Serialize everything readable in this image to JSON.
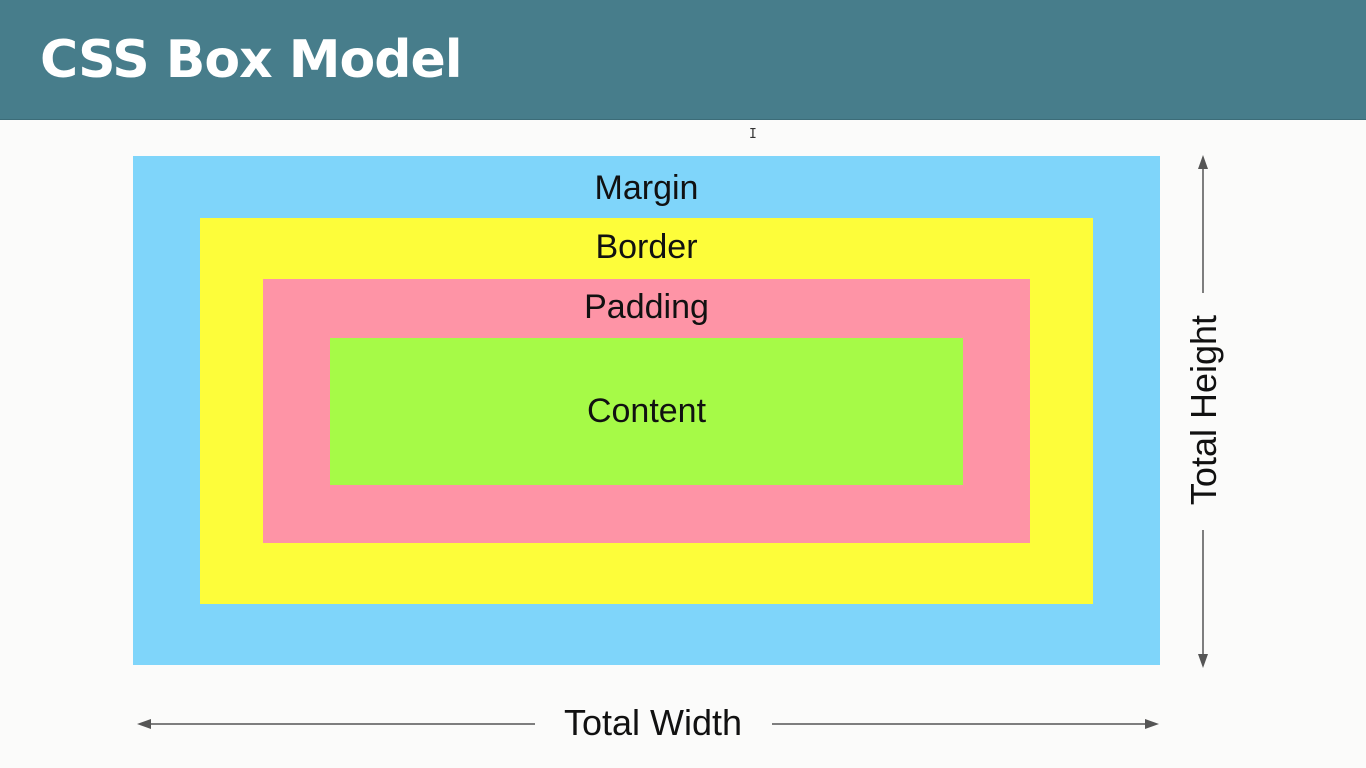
{
  "header": {
    "title": "CSS Box Model"
  },
  "diagram": {
    "layers": [
      {
        "key": "margin",
        "label": "Margin",
        "color": "#7fd5fa"
      },
      {
        "key": "border",
        "label": "Border",
        "color": "#fdfd3a"
      },
      {
        "key": "padding",
        "label": "Padding",
        "color": "#fe94a6"
      },
      {
        "key": "content",
        "label": "Content",
        "color": "#a6fa47"
      }
    ],
    "total_width_label": "Total Width",
    "total_height_label": "Total Height",
    "arrow_color": "#555555"
  },
  "colors": {
    "header_background": "#477d8b",
    "page_background": "#fbfbfa"
  }
}
